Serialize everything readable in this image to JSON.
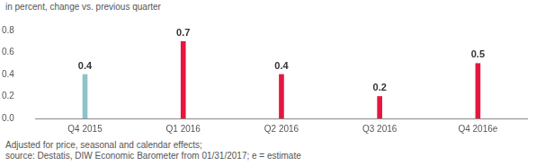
{
  "chart_data": {
    "type": "bar",
    "subtitle": "in percent, change vs. previous quarter",
    "notes": [
      "Adjusted for price, seasonal and calendar effects;",
      "source: Destatis, DIW Economic Barometer from 01/31/2017; e = estimate"
    ],
    "categories": [
      "Q4 2015",
      "Q1 2016",
      "Q2 2016",
      "Q3 2016",
      "Q4 2016e"
    ],
    "values": [
      0.4,
      0.7,
      0.4,
      0.2,
      0.5
    ],
    "colors": [
      "#8ec3c9",
      "#e5173f",
      "#e5173f",
      "#e5173f",
      "#e5173f"
    ],
    "ylim": [
      0,
      0.8
    ],
    "yticks": [
      {
        "value": 0,
        "label": "0.0"
      },
      0.2,
      0.4,
      0.6,
      0.8
    ],
    "grid": false,
    "data_labels": true
  }
}
